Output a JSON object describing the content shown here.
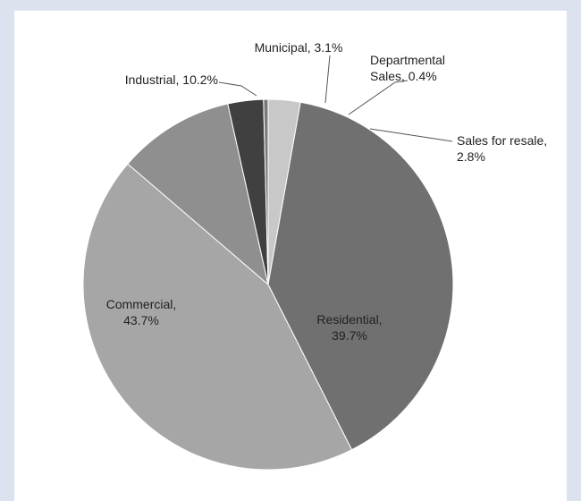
{
  "chart_data": {
    "type": "pie",
    "title": "",
    "start": "12 o'clock, clockwise",
    "slices": [
      {
        "label": "Sales for resale",
        "value": 2.8,
        "display": "Sales for resale,|2.8%",
        "color": "#c8c8c8"
      },
      {
        "label": "Residential",
        "value": 39.7,
        "display": "Residential,|39.7%",
        "color": "#707070"
      },
      {
        "label": "Commercial",
        "value": 43.7,
        "display": "Commercial,|43.7%",
        "color": "#a6a6a6"
      },
      {
        "label": "Industrial",
        "value": 10.2,
        "display": "Industrial, 10.2%",
        "color": "#8f8f8f"
      },
      {
        "label": "Municipal",
        "value": 3.1,
        "display": "Municipal, 3.1%",
        "color": "#404040"
      },
      {
        "label": "Departmental Sales",
        "value": 0.4,
        "display": "Departmental|Sales, 0.4%",
        "color": "#7a7a7a"
      }
    ]
  }
}
